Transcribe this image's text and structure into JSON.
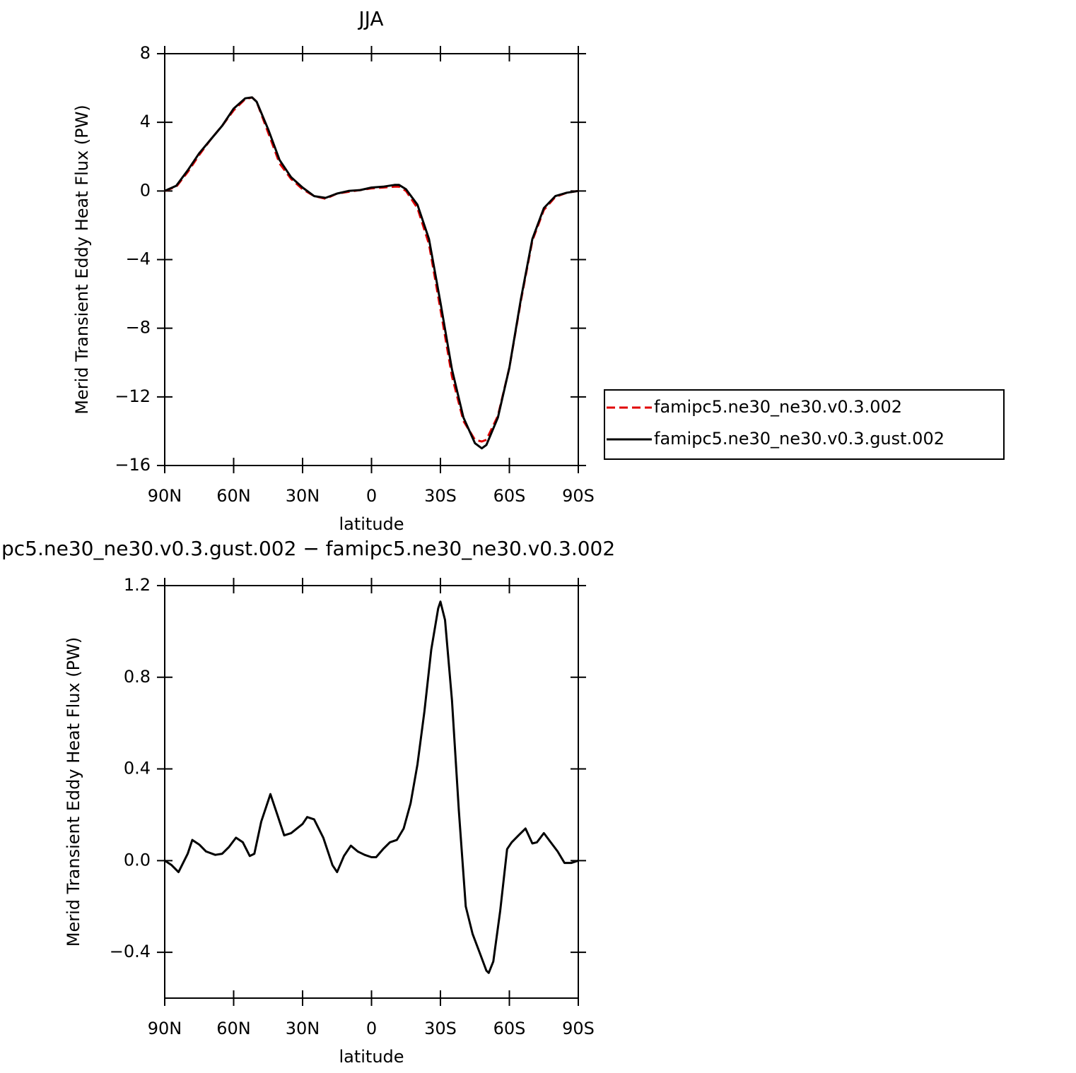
{
  "chart_data": [
    {
      "type": "line",
      "title": "JJA",
      "xlabel": "latitude",
      "ylabel": "Merid Transient Eddy Heat Flux (PW)",
      "x": [
        90,
        85,
        80,
        75,
        70,
        65,
        60,
        55,
        52,
        50,
        45,
        40,
        35,
        30,
        25,
        20,
        15,
        10,
        5,
        0,
        -5,
        -10,
        -12,
        -15,
        -20,
        -25,
        -30,
        -35,
        -40,
        -45,
        -48,
        -50,
        -55,
        -60,
        -65,
        -70,
        -75,
        -80,
        -85,
        -90
      ],
      "xlim": [
        90,
        -90
      ],
      "xticks": [
        {
          "value": 90,
          "label": "90N"
        },
        {
          "value": 60,
          "label": "60N"
        },
        {
          "value": 30,
          "label": "30N"
        },
        0,
        {
          "value": -30,
          "label": "30S"
        },
        {
          "value": -60,
          "label": "60S"
        },
        {
          "value": -90,
          "label": "90S"
        }
      ],
      "ylim": [
        -16,
        8
      ],
      "yticks": [
        8,
        4,
        0,
        {
          "value": -4,
          "label": "−4"
        },
        {
          "value": -8,
          "label": "−8"
        },
        {
          "value": -12,
          "label": "−12"
        },
        {
          "value": -16,
          "label": "−16"
        }
      ],
      "legend": "right",
      "series": [
        {
          "name": "famipc5.ne30_ne30.v0.3.002",
          "color": "#e00000",
          "dashed": true,
          "values": [
            0,
            0.25,
            1.1,
            2.1,
            3.0,
            3.8,
            4.7,
            5.35,
            5.45,
            5.2,
            3.4,
            1.6,
            0.7,
            0.1,
            -0.3,
            -0.45,
            -0.15,
            -0.05,
            0.05,
            0.15,
            0.2,
            0.25,
            0.25,
            0,
            -1.0,
            -3.1,
            -6.9,
            -10.8,
            -13.4,
            -14.5,
            -14.6,
            -14.5,
            -13.1,
            -10.3,
            -6.4,
            -2.9,
            -1.1,
            -0.35,
            -0.1,
            0
          ]
        },
        {
          "name": "famipc5.ne30_ne30.v0.3.gust.002",
          "color": "#000000",
          "dashed": false,
          "values": [
            0,
            0.3,
            1.2,
            2.2,
            3.0,
            3.8,
            4.8,
            5.4,
            5.45,
            5.2,
            3.6,
            1.8,
            0.8,
            0.2,
            -0.3,
            -0.4,
            -0.15,
            0,
            0.05,
            0.2,
            0.25,
            0.35,
            0.35,
            0.1,
            -0.8,
            -2.8,
            -6.5,
            -10.4,
            -13.2,
            -14.7,
            -15,
            -14.8,
            -13.2,
            -10.3,
            -6.3,
            -2.8,
            -1.0,
            -0.3,
            -0.1,
            0
          ]
        }
      ]
    },
    {
      "type": "line",
      "title": "pc5.ne30_ne30.v0.3.gust.002 − famipc5.ne30_ne30.v0.3.002",
      "xlabel": "latitude",
      "ylabel": "Merid Transient Eddy Heat Flux (PW)",
      "x": [
        90,
        87,
        84,
        80,
        78,
        75,
        72,
        68,
        65,
        62,
        59,
        56,
        53,
        51,
        48,
        44,
        41,
        38,
        35,
        30,
        28,
        25,
        21,
        17,
        15,
        12,
        9,
        6,
        3,
        0,
        -2,
        -5,
        -8,
        -11,
        -14,
        -17,
        -20,
        -23,
        -26,
        -29,
        -30,
        -32,
        -35,
        -38,
        -41,
        -44,
        -47,
        -50,
        -51,
        -53,
        -56,
        -59,
        -61,
        -64,
        -67,
        -70,
        -72,
        -75,
        -78,
        -81,
        -84,
        -87,
        -90
      ],
      "xlim": [
        90,
        -90
      ],
      "xticks": [
        {
          "value": 90,
          "label": "90N"
        },
        {
          "value": 60,
          "label": "60N"
        },
        {
          "value": 30,
          "label": "30N"
        },
        0,
        {
          "value": -30,
          "label": "30S"
        },
        {
          "value": -60,
          "label": "60S"
        },
        {
          "value": -90,
          "label": "90S"
        }
      ],
      "ylim": [
        -0.6,
        1.2
      ],
      "yticks": [
        1.2,
        0.8,
        0.4,
        {
          "value": 0,
          "label": "0.0"
        },
        {
          "value": -0.4,
          "label": "−0.4"
        }
      ],
      "series": [
        {
          "color": "#000000",
          "dashed": false,
          "values": [
            0,
            -0.02,
            -0.05,
            0.03,
            0.09,
            0.07,
            0.04,
            0.025,
            0.03,
            0.06,
            0.1,
            0.08,
            0.02,
            0.03,
            0.17,
            0.29,
            0.2,
            0.11,
            0.12,
            0.16,
            0.19,
            0.18,
            0.1,
            -0.02,
            -0.05,
            0.02,
            0.065,
            0.04,
            0.025,
            0.015,
            0.015,
            0.05,
            0.08,
            0.09,
            0.14,
            0.25,
            0.42,
            0.65,
            0.92,
            1.1,
            1.13,
            1.05,
            0.7,
            0.22,
            -0.2,
            -0.32,
            -0.4,
            -0.48,
            -0.49,
            -0.44,
            -0.22,
            0.05,
            0.08,
            0.11,
            0.14,
            0.075,
            0.08,
            0.12,
            0.08,
            0.04,
            -0.01,
            -0.01,
            0
          ]
        }
      ]
    }
  ]
}
